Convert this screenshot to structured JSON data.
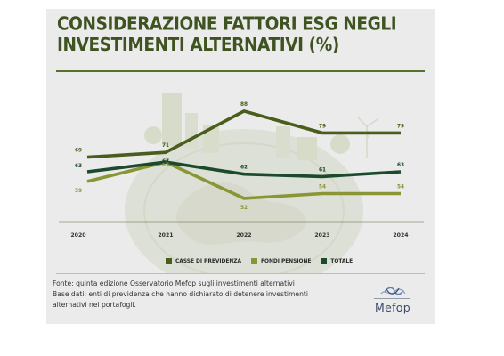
{
  "title": "CONSIDERAZIONE FATTORI ESG NEGLI INVESTIMENTI ALTERNATIVI (%)",
  "colors": {
    "casse": "#495d1c",
    "fondi": "#8a9636",
    "totale": "#1b4a2c",
    "title": "#3f5320",
    "background": "#ebebeb"
  },
  "chart_data": {
    "type": "line",
    "title": "CONSIDERAZIONE FATTORI ESG NEGLI INVESTIMENTI ALTERNATIVI (%)",
    "xlabel": "",
    "ylabel": "",
    "categories": [
      "2020",
      "2021",
      "2022",
      "2023",
      "2024"
    ],
    "series": [
      {
        "name": "CASSE DI PREVIDENZA",
        "values": [
          69,
          71,
          88,
          79,
          79
        ]
      },
      {
        "name": "FONDI PENSIONE",
        "values": [
          59,
          67,
          52,
          54,
          54
        ]
      },
      {
        "name": "TOTALE",
        "values": [
          63,
          67,
          62,
          61,
          63
        ]
      }
    ],
    "ylim": [
      45,
      92
    ],
    "grid": false,
    "legend": "bottom",
    "background_image": "city-skyline-and-globe-watermark"
  },
  "legend": {
    "items": [
      {
        "label": "CASSE DI PREVIDENZA"
      },
      {
        "label": "FONDI PENSIONE"
      },
      {
        "label": "TOTALE"
      }
    ]
  },
  "footer": {
    "source_line1": "Fonte: quinta edizione Osservatorio Mefop sugli investimenti alternativi",
    "source_line2": "Base dati: enti di previdenza che hanno dichiarato di detenere investimenti",
    "source_line3": "alternativi nei portafogli."
  },
  "logo": {
    "text": "Mefop"
  }
}
